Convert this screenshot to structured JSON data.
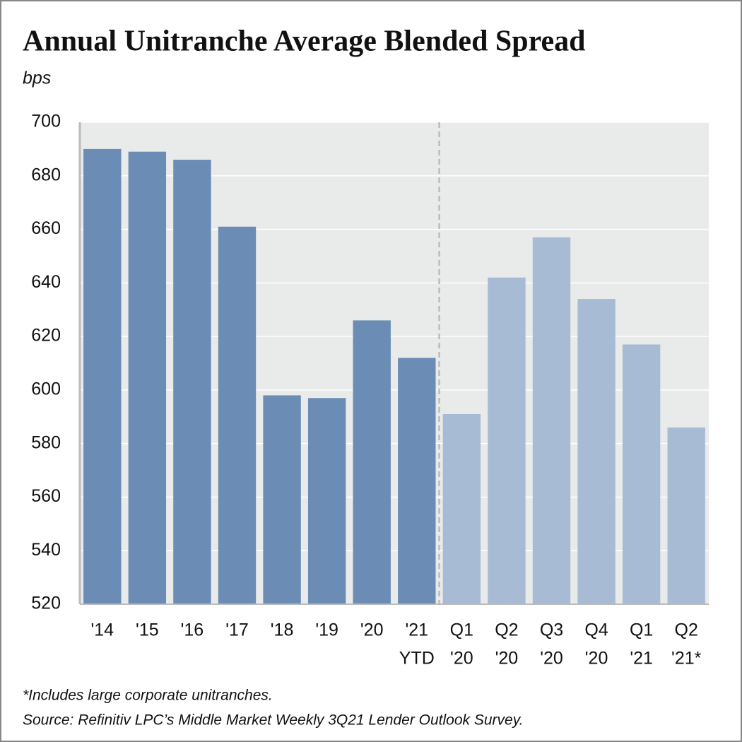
{
  "chart_data": {
    "type": "bar",
    "title": "Annual Unitranche Average Blended Spread",
    "subtitle": "bps",
    "categories": [
      [
        "'14"
      ],
      [
        "'15"
      ],
      [
        "'16"
      ],
      [
        "'17"
      ],
      [
        "'18"
      ],
      [
        "'19"
      ],
      [
        "'20"
      ],
      [
        "'21",
        "YTD"
      ],
      [
        "Q1",
        "'20"
      ],
      [
        "Q2",
        "'20"
      ],
      [
        "Q3",
        "'20"
      ],
      [
        "Q4",
        "'20"
      ],
      [
        "Q1",
        "'21"
      ],
      [
        "Q2",
        "'21*"
      ]
    ],
    "values": [
      690,
      689,
      686,
      661,
      598,
      597,
      626,
      612,
      591,
      642,
      657,
      634,
      617,
      586
    ],
    "colors": [
      "#6b8cb4",
      "#6b8cb4",
      "#6b8cb4",
      "#6b8cb4",
      "#6b8cb4",
      "#6b8cb4",
      "#6b8cb4",
      "#6b8cb4",
      "#a8bbd5",
      "#a8bbd5",
      "#a8bbd5",
      "#a8bbd5",
      "#a8bbd5",
      "#a8bbd5"
    ],
    "ylim": [
      520,
      700
    ],
    "yticks": [
      520,
      540,
      560,
      580,
      600,
      620,
      640,
      660,
      680,
      700
    ],
    "grid": true,
    "notes": [
      "*Includes large corporate unitranches.",
      "Source: Refinitiv LPC’s Middle Market Weekly 3Q21 Lender Outlook Survey."
    ]
  }
}
